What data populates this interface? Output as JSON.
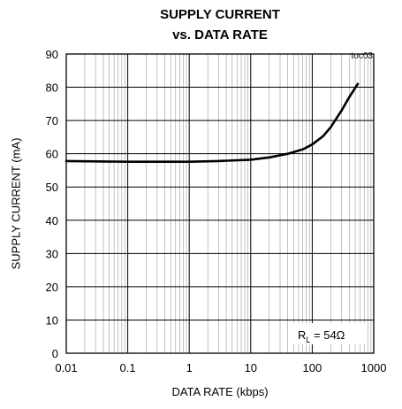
{
  "chart_data": {
    "type": "line",
    "title": [
      "SUPPLY CURRENT",
      "vs. DATA RATE"
    ],
    "note": "toc03",
    "xlabel": "DATA RATE (kbps)",
    "ylabel": "SUPPLY CURRENT (mA)",
    "x_scale": "log",
    "xlim": [
      0.01,
      1000
    ],
    "ylim": [
      0,
      90
    ],
    "xticks": [
      0.01,
      0.1,
      1,
      10,
      100,
      1000
    ],
    "xtick_labels": [
      "0.01",
      "0.1",
      "1",
      "10",
      "100",
      "1000"
    ],
    "yticks": [
      0,
      10,
      20,
      30,
      40,
      50,
      60,
      70,
      80,
      90
    ],
    "ytick_labels": [
      "0",
      "10",
      "20",
      "30",
      "40",
      "50",
      "60",
      "70",
      "80",
      "90"
    ],
    "grid": true,
    "legend": {
      "label_main": "R",
      "label_sub": "L",
      "label_rest": " = 54Ω",
      "placement": "bottom-right"
    },
    "series": [
      {
        "x": [
          0.01,
          0.03,
          0.1,
          0.3,
          1,
          3,
          10,
          20,
          40,
          70,
          100,
          150,
          200,
          300,
          400,
          550
        ],
        "y": [
          57.8,
          57.7,
          57.6,
          57.6,
          57.6,
          57.8,
          58.2,
          58.9,
          60.0,
          61.3,
          62.8,
          65.3,
          68.0,
          73.0,
          77.0,
          81.0
        ]
      }
    ]
  }
}
